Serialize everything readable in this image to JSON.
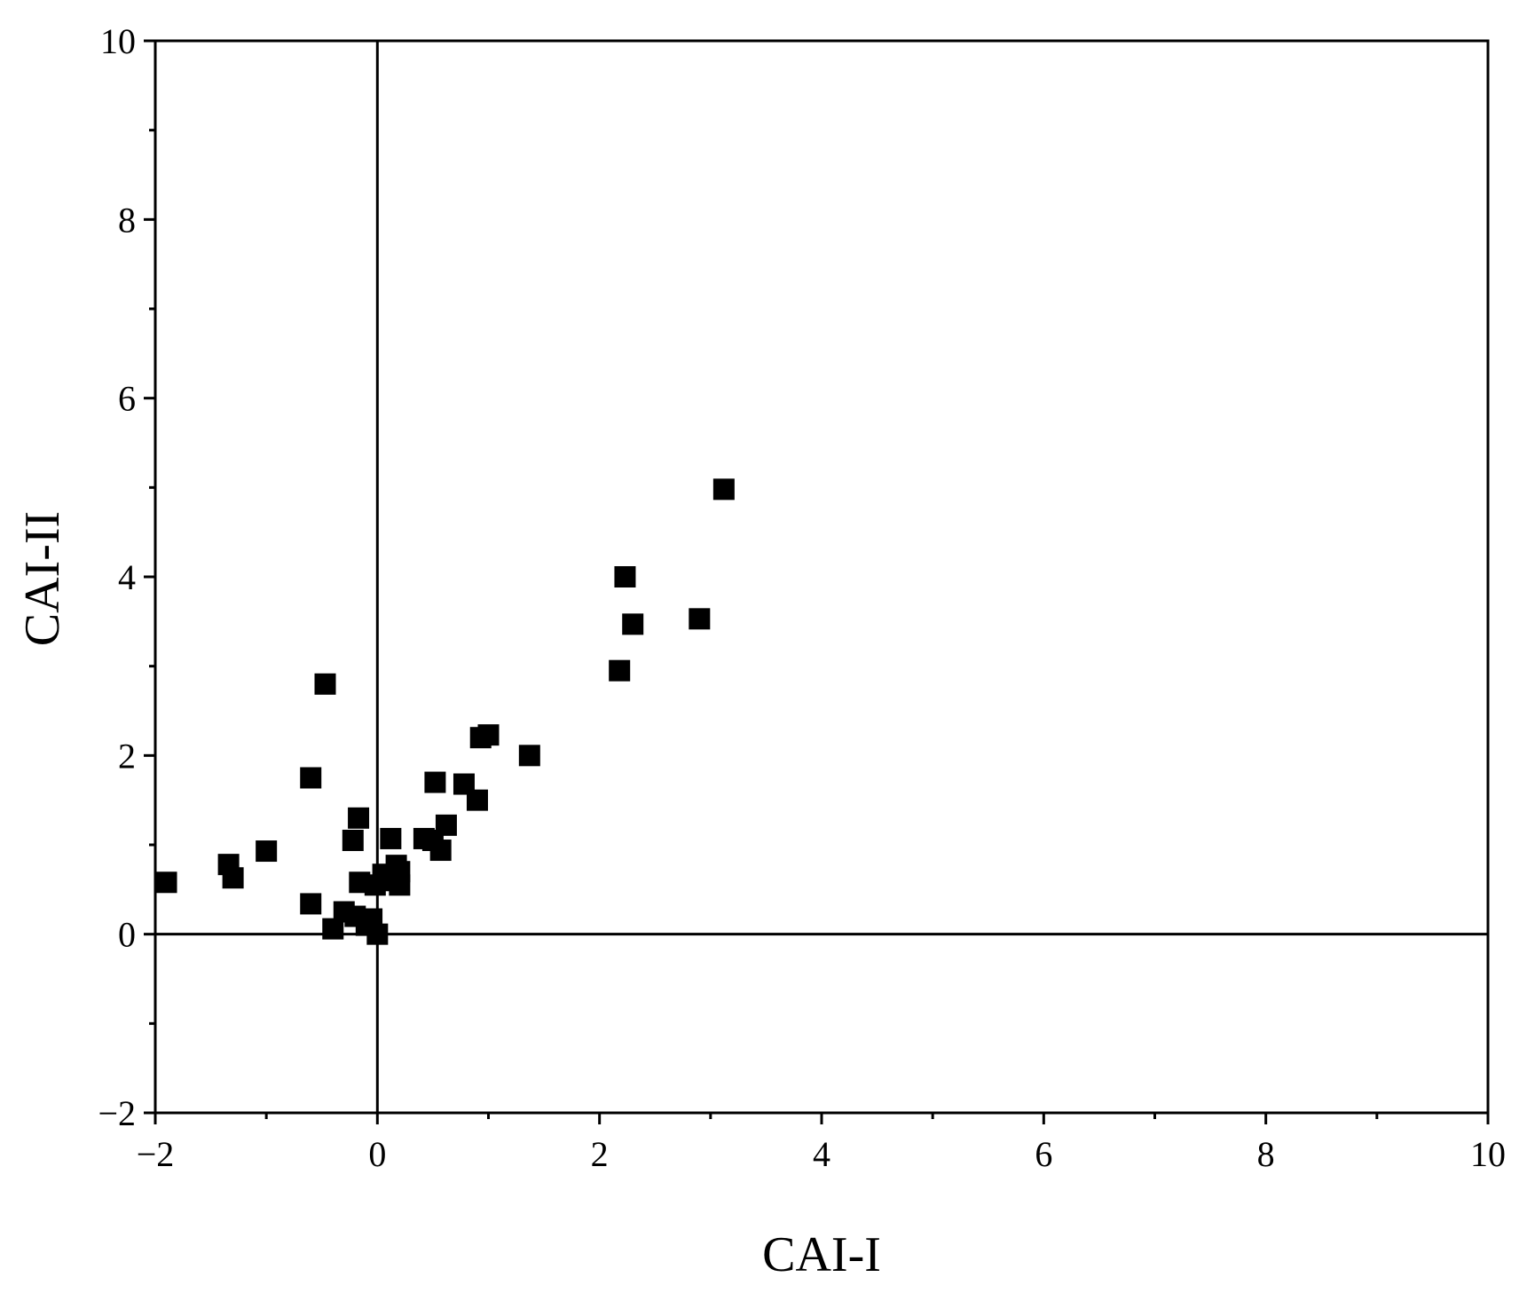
{
  "chart_data": {
    "type": "scatter",
    "xlabel": "CAI-I",
    "ylabel": "CAI-II",
    "xlim": [
      -2,
      10
    ],
    "ylim": [
      -2,
      10
    ],
    "xticks": [
      -2,
      0,
      2,
      4,
      6,
      8,
      10
    ],
    "yticks": [
      -2,
      0,
      2,
      4,
      6,
      8,
      10
    ],
    "xtick_labels": [
      "−2",
      "0",
      "2",
      "4",
      "6",
      "8",
      "10"
    ],
    "ytick_labels": [
      "−2",
      "0",
      "2",
      "4",
      "6",
      "8",
      "10"
    ],
    "x_minor_step": 1,
    "y_minor_step": 1,
    "reference_lines": {
      "x": 0,
      "y": 0
    },
    "marker": "square",
    "marker_color": "#000000",
    "grid": false,
    "points": [
      {
        "x": -1.9,
        "y": 0.58
      },
      {
        "x": -1.34,
        "y": 0.78
      },
      {
        "x": -1.3,
        "y": 0.63
      },
      {
        "x": -1.0,
        "y": 0.93
      },
      {
        "x": -0.6,
        "y": 0.34
      },
      {
        "x": -0.6,
        "y": 1.75
      },
      {
        "x": -0.47,
        "y": 2.8
      },
      {
        "x": -0.4,
        "y": 0.06
      },
      {
        "x": -0.3,
        "y": 0.25
      },
      {
        "x": -0.22,
        "y": 1.05
      },
      {
        "x": -0.2,
        "y": 0.2
      },
      {
        "x": -0.17,
        "y": 1.3
      },
      {
        "x": -0.16,
        "y": 0.58
      },
      {
        "x": -0.1,
        "y": 0.1
      },
      {
        "x": -0.05,
        "y": 0.17
      },
      {
        "x": -0.02,
        "y": 0.55
      },
      {
        "x": 0.0,
        "y": 0.0
      },
      {
        "x": 0.05,
        "y": 0.67
      },
      {
        "x": 0.1,
        "y": 0.6
      },
      {
        "x": 0.12,
        "y": 1.07
      },
      {
        "x": 0.17,
        "y": 0.77
      },
      {
        "x": 0.2,
        "y": 0.55
      },
      {
        "x": 0.2,
        "y": 0.7
      },
      {
        "x": 0.42,
        "y": 1.07
      },
      {
        "x": 0.5,
        "y": 1.05
      },
      {
        "x": 0.52,
        "y": 1.7
      },
      {
        "x": 0.57,
        "y": 0.94
      },
      {
        "x": 0.62,
        "y": 1.22
      },
      {
        "x": 0.78,
        "y": 1.68
      },
      {
        "x": 0.9,
        "y": 1.5
      },
      {
        "x": 0.93,
        "y": 2.2
      },
      {
        "x": 1.0,
        "y": 2.23
      },
      {
        "x": 1.37,
        "y": 2.0
      },
      {
        "x": 2.18,
        "y": 2.95
      },
      {
        "x": 2.23,
        "y": 4.0
      },
      {
        "x": 2.3,
        "y": 3.47
      },
      {
        "x": 2.9,
        "y": 3.53
      },
      {
        "x": 3.12,
        "y": 4.98
      }
    ]
  }
}
